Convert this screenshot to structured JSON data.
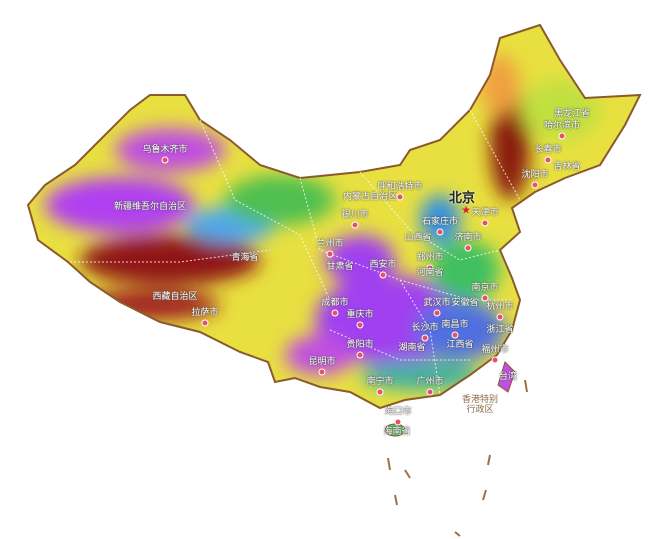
{
  "map": {
    "colors": {
      "border": "#8b5a2b",
      "high": "#7a1010",
      "mid": "#f0e040",
      "low": "#9b30ff",
      "water": "#3aa0e0",
      "green": "#40c040",
      "capital": "#e0202a",
      "city_dot": "#e8506a"
    },
    "capital": {
      "name": "北京",
      "icon": "star-icon"
    },
    "places": [
      {
        "name": "乌鲁木齐市",
        "city": true
      },
      {
        "name": "新疆维吾尔自治区",
        "city": false
      },
      {
        "name": "西藏自治区",
        "city": false
      },
      {
        "name": "拉萨市",
        "city": true
      },
      {
        "name": "青海省",
        "city": false
      },
      {
        "name": "兰州市",
        "city": true
      },
      {
        "name": "甘肃省",
        "city": false
      },
      {
        "name": "银川市",
        "city": true
      },
      {
        "name": "呼和浩特市",
        "city": true
      },
      {
        "name": "内蒙古自治区",
        "city": false
      },
      {
        "name": "天津市",
        "city": true
      },
      {
        "name": "石家庄市",
        "city": true
      },
      {
        "name": "山西省",
        "city": false
      },
      {
        "name": "济南市",
        "city": true
      },
      {
        "name": "西安市",
        "city": true
      },
      {
        "name": "郑州市",
        "city": true
      },
      {
        "name": "河南省",
        "city": false
      },
      {
        "name": "南京市",
        "city": true
      },
      {
        "name": "成都市",
        "city": true
      },
      {
        "name": "重庆市",
        "city": true
      },
      {
        "name": "武汉市",
        "city": true
      },
      {
        "name": "安徽省",
        "city": false
      },
      {
        "name": "杭州市",
        "city": true
      },
      {
        "name": "长沙市",
        "city": true
      },
      {
        "name": "南昌市",
        "city": true
      },
      {
        "name": "浙江省",
        "city": false
      },
      {
        "name": "贵阳市",
        "city": true
      },
      {
        "name": "湖南省",
        "city": false
      },
      {
        "name": "江西省",
        "city": false
      },
      {
        "name": "福州市",
        "city": true
      },
      {
        "name": "昆明市",
        "city": true
      },
      {
        "name": "南宁市",
        "city": true
      },
      {
        "name": "广州市",
        "city": true
      },
      {
        "name": "海口市",
        "city": true
      },
      {
        "name": "海南省",
        "city": false
      },
      {
        "name": "哈尔滨市",
        "city": true
      },
      {
        "name": "黑龙江省",
        "city": false
      },
      {
        "name": "长春市",
        "city": true
      },
      {
        "name": "吉林省",
        "city": false
      },
      {
        "name": "沈阳市",
        "city": true
      },
      {
        "name": "台湾",
        "city": false
      }
    ],
    "hong_kong": {
      "line1": "香港特别",
      "line2": "行政区"
    }
  }
}
